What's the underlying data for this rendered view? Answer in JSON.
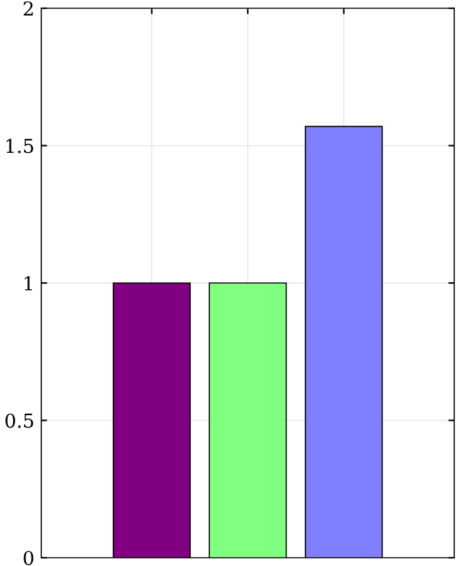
{
  "chart_data": {
    "type": "bar",
    "categories": [
      null,
      null,
      null
    ],
    "values": [
      1,
      1,
      1.57
    ],
    "colors": [
      "#800080",
      "#80ff80",
      "#8080ff"
    ],
    "ylim": [
      0,
      2
    ],
    "yticks": [
      0,
      0.5,
      1,
      1.5,
      2
    ],
    "grid": true
  }
}
